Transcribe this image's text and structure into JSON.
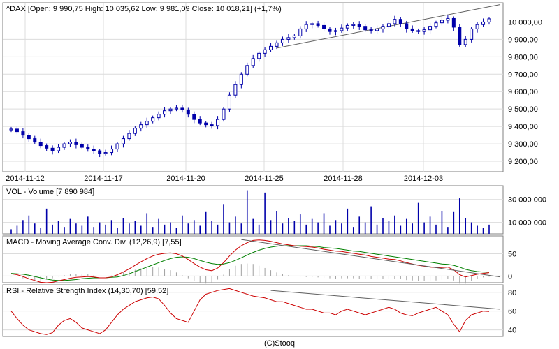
{
  "footer": {
    "copyright": "(C)Stooq"
  },
  "colors": {
    "candle": "#0000aa",
    "volume": "#0000aa",
    "macd": "#cc0000",
    "signal": "#008000",
    "rsi": "#cc0000",
    "trend": "#606060",
    "histogram": "#a0a0a0"
  },
  "chart_data": [
    {
      "type": "candlestick",
      "title": "^DAX [Open: 9 990,75   High: 10 035,62   Low: 9 981,09   Close: 10 018,21] (+1,7%)",
      "ylim": [
        9140,
        10110
      ],
      "y_ticks": [
        "9 200,00",
        "9 300,00",
        "9 400,00",
        "9 500,00",
        "9 600,00",
        "9 700,00",
        "9 800,00",
        "9 900,00",
        "10 000,00"
      ],
      "x_tick_labels": [
        "2014-11-12",
        "2014-11-17",
        "2014-11-20",
        "2014-11-25",
        "2014-11-28",
        "2014-12-03"
      ],
      "close": [
        9385,
        9370,
        9350,
        9330,
        9310,
        9290,
        9275,
        9260,
        9280,
        9300,
        9310,
        9295,
        9280,
        9270,
        9260,
        9245,
        9250,
        9270,
        9300,
        9330,
        9360,
        9390,
        9410,
        9430,
        9450,
        9470,
        9490,
        9500,
        9505,
        9495,
        9470,
        9440,
        9420,
        9410,
        9405,
        9440,
        9500,
        9580,
        9640,
        9700,
        9750,
        9790,
        9820,
        9840,
        9860,
        9880,
        9900,
        9910,
        9920,
        9960,
        9985,
        9990,
        9980,
        9960,
        9945,
        9950,
        9965,
        9980,
        9985,
        9975,
        9955,
        9950,
        9960,
        9975,
        9990,
        10015,
        9990,
        9960,
        9950,
        9945,
        9955,
        9975,
        9995,
        10010,
        10020,
        9970,
        9870,
        9900,
        9960,
        9985,
        10000,
        10018
      ]
    },
    {
      "type": "bar",
      "title": "VOL - Volume [7 890 984]",
      "ylim": [
        0,
        42000000
      ],
      "y_ticks": [
        "10 000 000",
        "30 000 000"
      ],
      "values": [
        4000000,
        7000000,
        12000000,
        16000000,
        9000000,
        5000000,
        22000000,
        8000000,
        11000000,
        6000000,
        13000000,
        9000000,
        7000000,
        15000000,
        6000000,
        10000000,
        8000000,
        12000000,
        5000000,
        14000000,
        9000000,
        11000000,
        7000000,
        18000000,
        6000000,
        13000000,
        8000000,
        10000000,
        5000000,
        16000000,
        9000000,
        12000000,
        7000000,
        19000000,
        11000000,
        8000000,
        26000000,
        10000000,
        15000000,
        9000000,
        38000000,
        13000000,
        8000000,
        36000000,
        12000000,
        20000000,
        9000000,
        14000000,
        11000000,
        17000000,
        8000000,
        13000000,
        10000000,
        18000000,
        7000000,
        12000000,
        9000000,
        22000000,
        6000000,
        15000000,
        10000000,
        24000000,
        8000000,
        14000000,
        11000000,
        16000000,
        7000000,
        13000000,
        9000000,
        27000000,
        10000000,
        15000000,
        8000000,
        20000000,
        6000000,
        19000000,
        31000000,
        14000000,
        10000000,
        7000000,
        5000000,
        8000000
      ]
    },
    {
      "type": "line",
      "title": "MACD - Moving Average Conv. Div. (12,26,9) [7,55]",
      "ylim": [
        -15,
        90
      ],
      "y_ticks": [
        "0",
        "50"
      ],
      "macd": [
        5,
        3,
        -1,
        -6,
        -10,
        -14,
        -15,
        -14,
        -11,
        -8,
        -5,
        -3,
        -2,
        -1,
        -2,
        -4,
        -4,
        -2,
        3,
        9,
        16,
        24,
        32,
        39,
        45,
        49,
        51,
        52,
        50,
        45,
        37,
        28,
        20,
        14,
        12,
        18,
        30,
        45,
        58,
        68,
        75,
        80,
        81,
        80,
        78,
        75,
        72,
        70,
        68,
        67,
        66,
        65,
        63,
        60,
        58,
        56,
        55,
        53,
        51,
        49,
        47,
        44,
        42,
        40,
        38,
        37,
        34,
        30,
        27,
        24,
        22,
        20,
        19,
        19,
        20,
        14,
        3,
        -2,
        1,
        4,
        6,
        7.55
      ],
      "signal": [
        6,
        5,
        4,
        2,
        -1,
        -4,
        -7,
        -9,
        -10,
        -10,
        -9,
        -8,
        -6,
        -5,
        -4,
        -4,
        -4,
        -3,
        -2,
        1,
        5,
        10,
        15,
        20,
        25,
        30,
        35,
        39,
        42,
        43,
        42,
        39,
        35,
        31,
        28,
        26,
        27,
        30,
        35,
        41,
        47,
        53,
        58,
        62,
        65,
        67,
        68,
        68,
        68,
        68,
        68,
        67,
        66,
        64,
        63,
        62,
        60,
        58,
        56,
        55,
        53,
        51,
        49,
        47,
        45,
        43,
        41,
        39,
        37,
        35,
        33,
        31,
        29,
        27,
        26,
        24,
        20,
        15,
        12,
        10,
        9,
        9
      ]
    },
    {
      "type": "line",
      "title": "RSI - Relative Strength Index (14,30,70) [59,52]",
      "ylim": [
        33,
        88
      ],
      "y_ticks": [
        "40",
        "60",
        "80"
      ],
      "values": [
        60,
        52,
        45,
        40,
        38,
        36,
        35,
        37,
        45,
        50,
        52,
        48,
        42,
        40,
        38,
        36,
        40,
        48,
        56,
        62,
        66,
        70,
        72,
        74,
        75,
        73,
        66,
        58,
        52,
        50,
        48,
        60,
        72,
        78,
        80,
        82,
        83,
        84,
        82,
        80,
        78,
        76,
        75,
        74,
        72,
        70,
        70,
        68,
        66,
        64,
        62,
        62,
        60,
        58,
        58,
        56,
        60,
        62,
        60,
        58,
        56,
        58,
        60,
        62,
        64,
        62,
        58,
        56,
        55,
        58,
        60,
        62,
        64,
        60,
        56,
        46,
        38,
        50,
        56,
        58,
        60,
        59.52
      ]
    }
  ]
}
